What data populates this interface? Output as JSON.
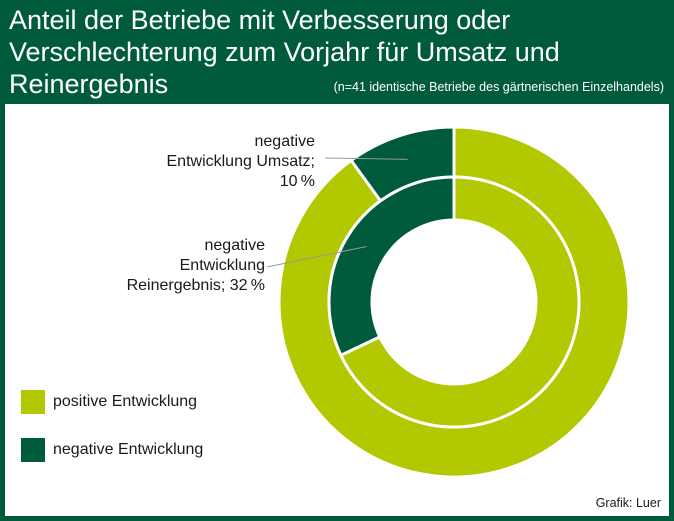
{
  "title": "Anteil der Betriebe mit Verbesserung oder Verschlechterung zum Vorjahr für Umsatz und Reinergebnis",
  "subtitle": "(n=41 identische Betriebe des gärtnerischen Einzelhandels)",
  "credit": "Grafik: Luer",
  "colors": {
    "positive": "#b2c800",
    "negative": "#005a3c",
    "background": "#005a3c",
    "leader_line": "#999999"
  },
  "chart_data": {
    "type": "pie",
    "variant": "nested-donut",
    "title": "Anteil der Betriebe mit Verbesserung oder Verschlechterung zum Vorjahr für Umsatz und Reinergebnis",
    "categories": [
      "positive Entwicklung",
      "negative Entwicklung"
    ],
    "rings": [
      {
        "ring": "outer",
        "series": "Umsatz",
        "values": [
          90,
          10
        ],
        "unit": "%",
        "annotation": {
          "line1": "negative",
          "line2": "Entwicklung Umsatz;",
          "line3": "10 %"
        }
      },
      {
        "ring": "inner",
        "series": "Reinergebnis",
        "values": [
          68,
          32
        ],
        "unit": "%",
        "annotation": {
          "line1": "negative",
          "line2": "Entwicklung",
          "line3": "Reinergebnis; 32 %"
        }
      }
    ],
    "legend": {
      "position": "bottom-left",
      "entries": [
        {
          "label": "positive Entwicklung",
          "color_key": "positive"
        },
        {
          "label": "negative Entwicklung",
          "color_key": "negative"
        }
      ]
    }
  }
}
